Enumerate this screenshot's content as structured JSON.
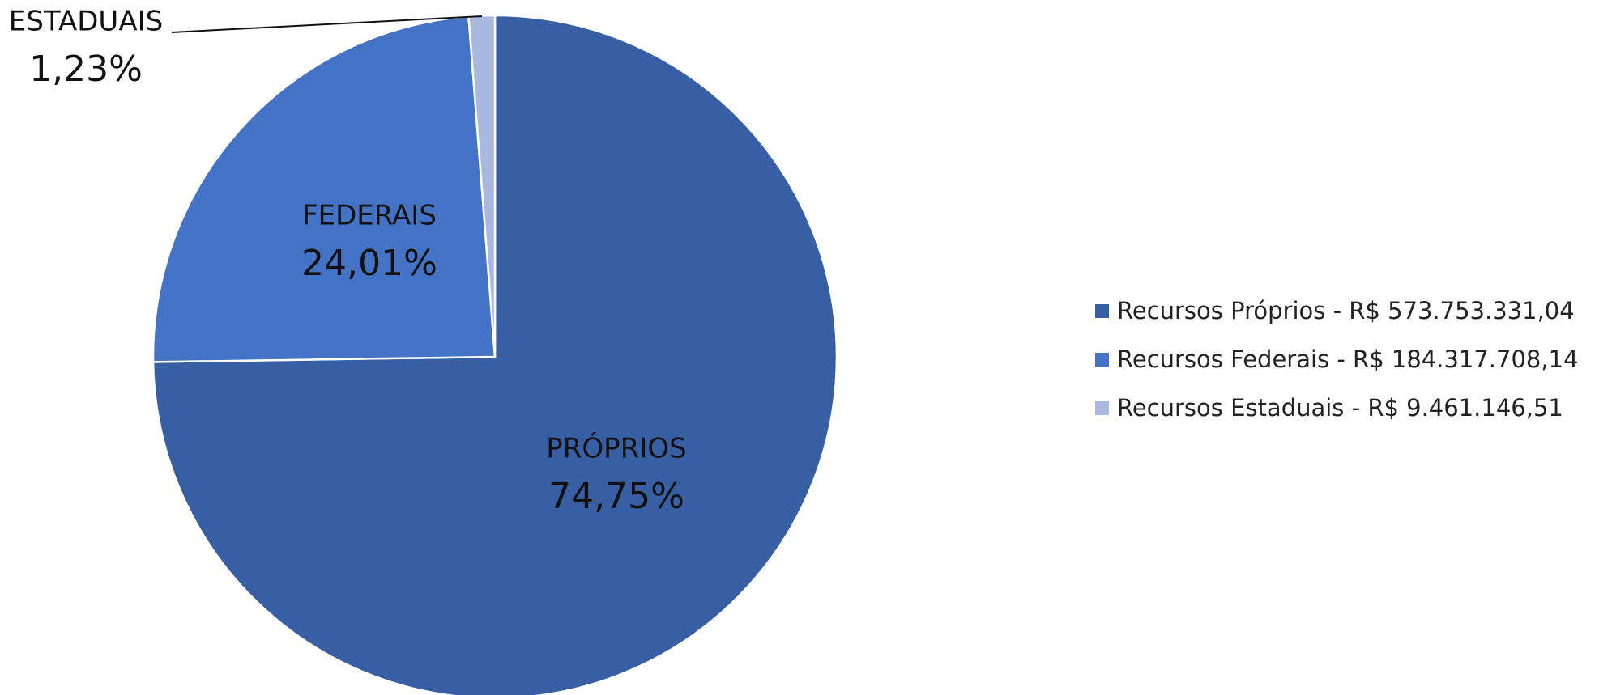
{
  "chart_data": {
    "type": "pie",
    "title": "",
    "start_angle_deg": 0,
    "direction": "clockwise",
    "slices": [
      {
        "name": "PRÓPRIOS",
        "percent_label": "74,75%",
        "value": 74.75,
        "color": "#385fa3",
        "legend": "Recursos Próprios - R$ 573.753.331,04"
      },
      {
        "name": "FEDERAIS",
        "percent_label": "24,01%",
        "value": 24.01,
        "color": "#4472c4",
        "legend": "Recursos Federais - R$ 184.317.708,14"
      },
      {
        "name": "ESTADUAIS",
        "percent_label": "1,23%",
        "value": 1.23,
        "color": "#a9b8df",
        "legend": "Recursos Estaduais - R$ 9.461.146,51"
      }
    ],
    "legend_position": "right"
  }
}
